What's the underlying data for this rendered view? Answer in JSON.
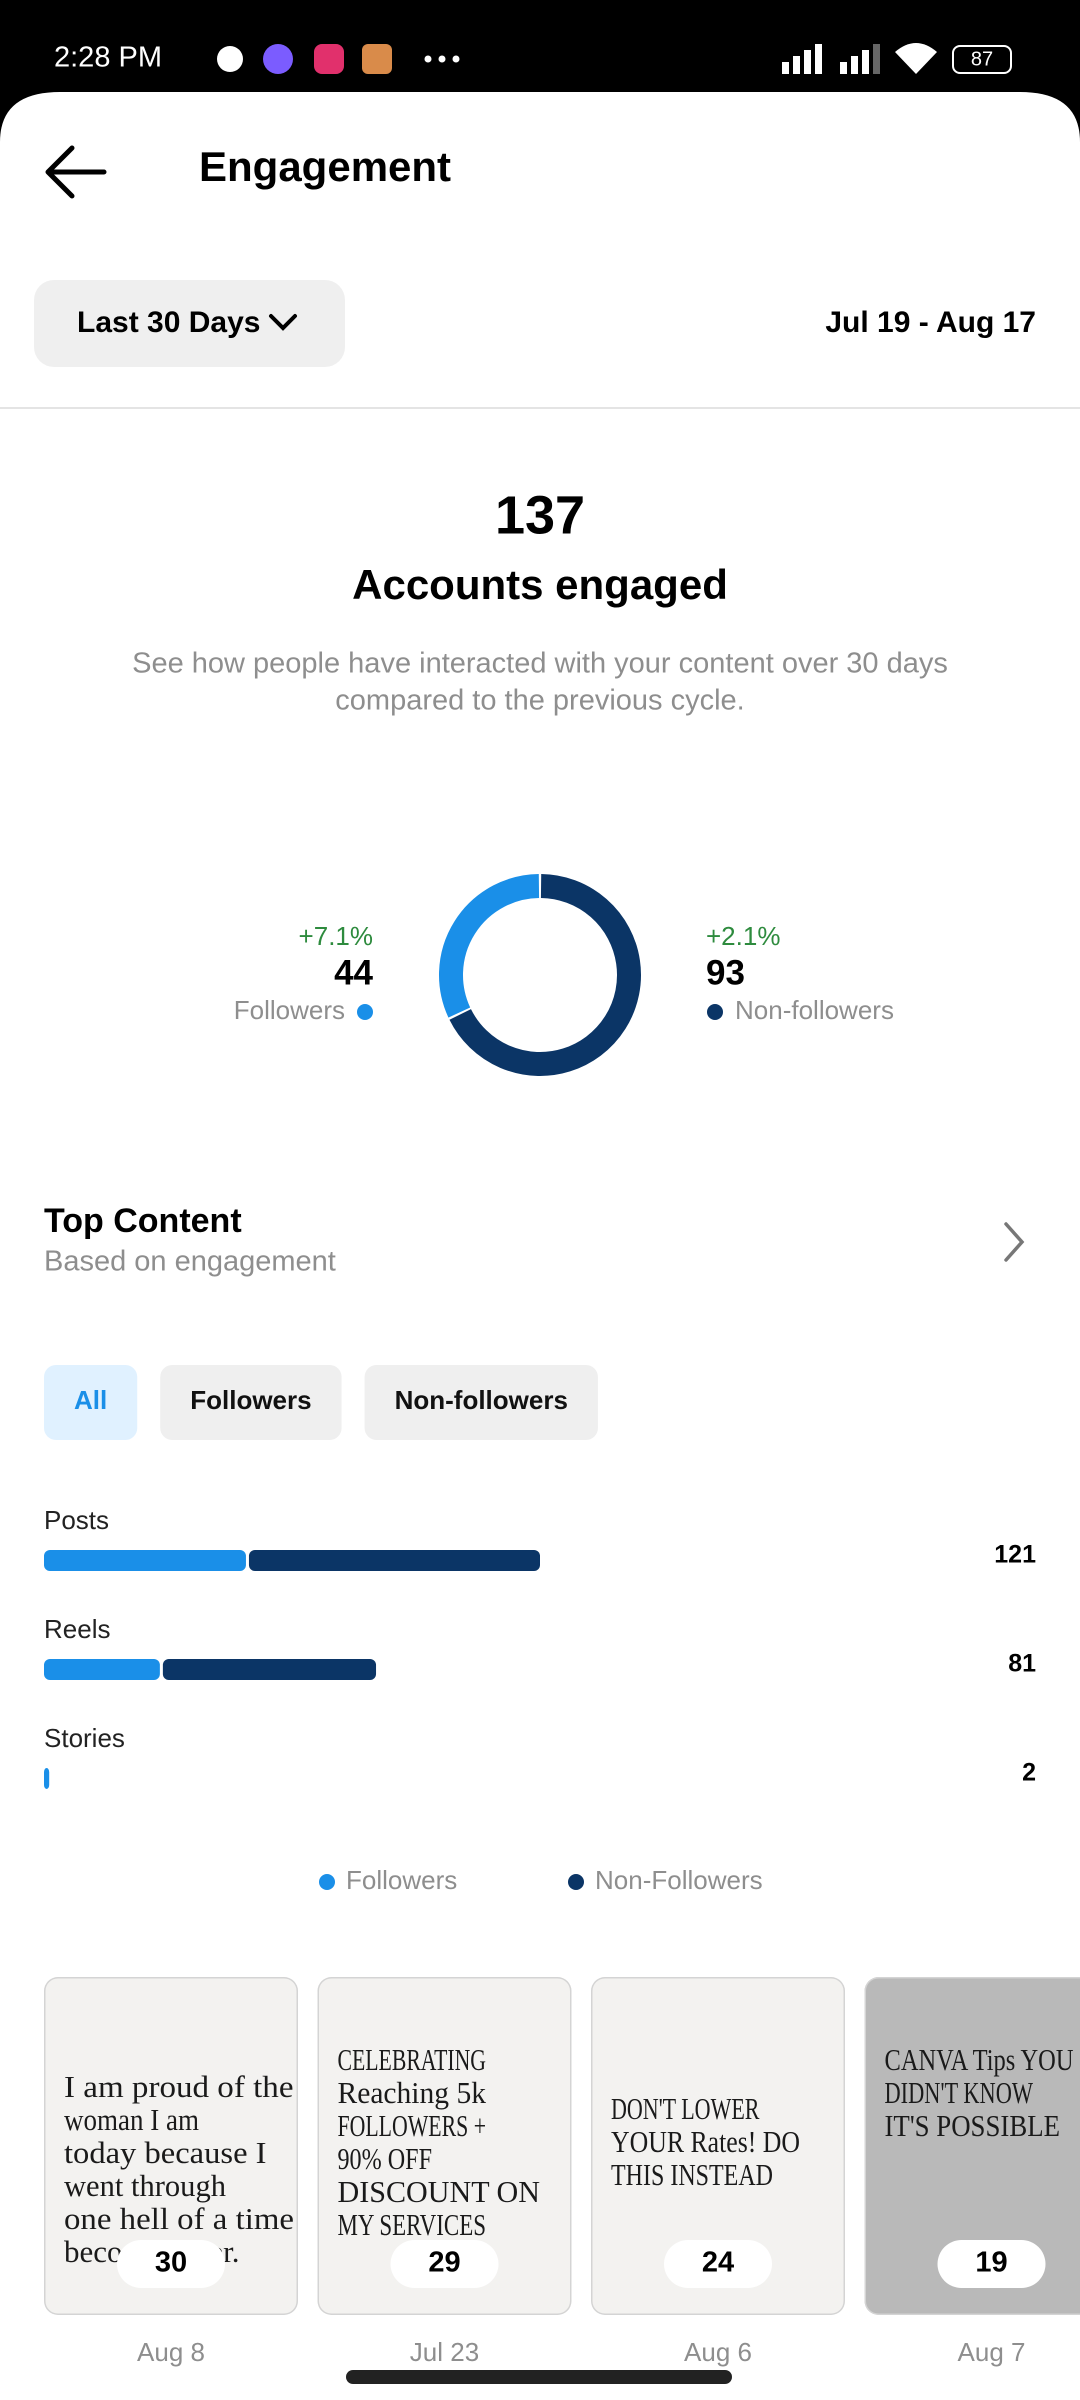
{
  "status_bar": {
    "time": "2:28 PM",
    "battery": "87"
  },
  "header": {
    "title": "Engagement"
  },
  "date_filter": {
    "selected": "Last 30 Days",
    "range": "Jul 19 - Aug 17"
  },
  "summary": {
    "value": 137,
    "label": "Accounts engaged",
    "description": [
      "See how people have interacted with your content over 30 days",
      "compared to the previous cycle."
    ]
  },
  "chart_data": [
    {
      "type": "donut",
      "categories": [
        "Followers",
        "Non-followers"
      ],
      "values": [
        44,
        93
      ],
      "colors": [
        "#1a8fe8",
        "#0b3566"
      ],
      "changes": [
        "+7.1%",
        "+2.1%"
      ]
    },
    {
      "type": "stacked-bar",
      "categories": [
        "Posts",
        "Reels",
        "Stories"
      ],
      "totals": [
        121,
        81,
        2
      ],
      "series": [
        {
          "name": "Followers",
          "color": "#1a8fe8",
          "values": [
            50,
            29,
            2
          ]
        },
        {
          "name": "Non-Followers",
          "color": "#0b3566",
          "values": [
            71,
            52,
            0
          ]
        }
      ]
    }
  ],
  "top_content": {
    "title": "Top Content",
    "subtitle": "Based on engagement",
    "tabs": [
      "All",
      "Followers",
      "Non-followers"
    ],
    "items": [
      {
        "lines": [
          "I am proud of the",
          "woman I am",
          "today because I",
          "went through",
          "one hell of a time",
          "becoming her."
        ],
        "value": 30,
        "date": "Aug 8"
      },
      {
        "lines": [
          "CELEBRATING",
          "Reaching 5k",
          "FOLLOWERS +",
          "90% OFF",
          "DISCOUNT     ON",
          "MY SERVICES"
        ],
        "value": 29,
        "date": "Jul 23"
      },
      {
        "lines": [
          "DON'T LOWER",
          "YOUR Rates! DO",
          "THIS INSTEAD"
        ],
        "value": 24,
        "date": "Aug 6"
      },
      {
        "lines": [
          "CANVA Tips YOU",
          "DIDN'T KNOW",
          "IT'S POSSIBLE"
        ],
        "value": 19,
        "date": "Aug 7"
      }
    ]
  }
}
